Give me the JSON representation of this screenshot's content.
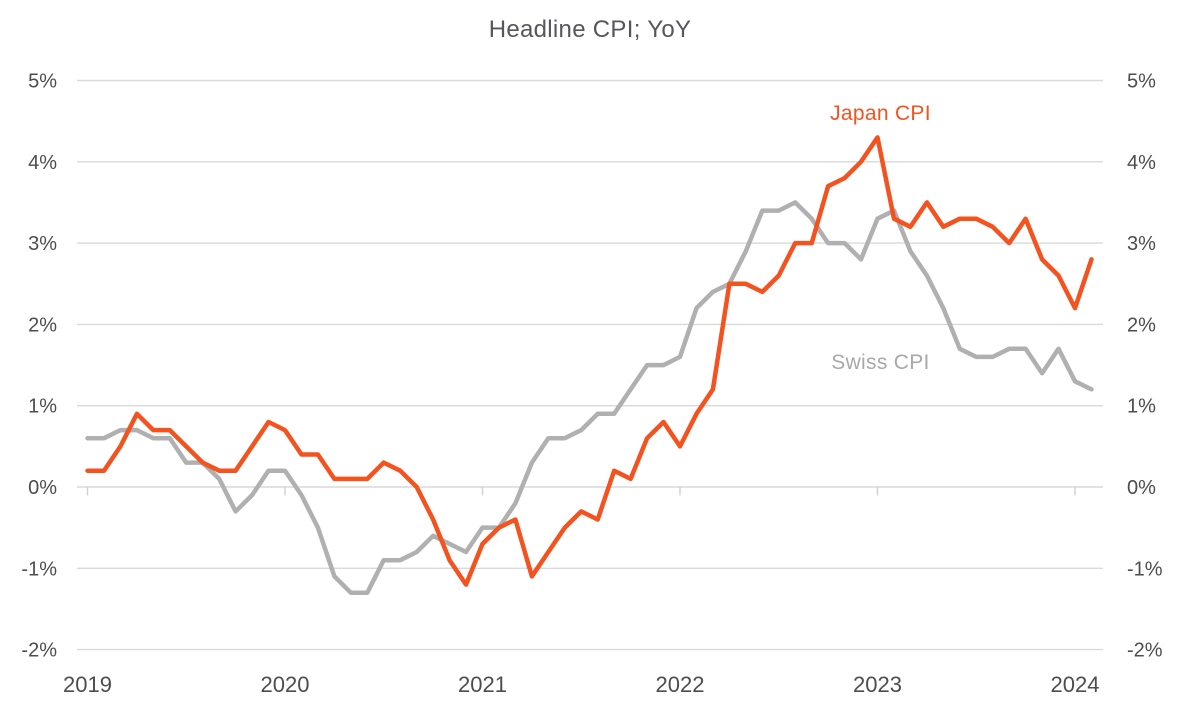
{
  "page": {
    "background": "#ffffff"
  },
  "chart_data": {
    "type": "line",
    "title": "Headline CPI; YoY",
    "x_unit": "month",
    "frequency": "monthly",
    "x_start": "2019-01",
    "x_end": "2024-02",
    "x_tick_labels": [
      "2019",
      "2020",
      "2021",
      "2022",
      "2023",
      "2024"
    ],
    "y_axis": {
      "min": -2,
      "max": 5,
      "tick_step": 1,
      "tick_labels": [
        "5%",
        "4%",
        "3%",
        "2%",
        "1%",
        "0%",
        "-1%",
        "-2%"
      ],
      "label_sides": [
        "left",
        "right"
      ],
      "grid": true,
      "year_ticks_on_zero_line": true
    },
    "series": [
      {
        "name": "Swiss CPI",
        "color": "#b0b0b0",
        "values": [
          0.6,
          0.6,
          0.7,
          0.7,
          0.6,
          0.6,
          0.3,
          0.3,
          0.1,
          -0.3,
          -0.1,
          0.2,
          0.2,
          -0.1,
          -0.5,
          -1.1,
          -1.3,
          -1.3,
          -0.9,
          -0.9,
          -0.8,
          -0.6,
          -0.7,
          -0.8,
          -0.5,
          -0.5,
          -0.2,
          0.3,
          0.6,
          0.6,
          0.7,
          0.9,
          0.9,
          1.2,
          1.5,
          1.5,
          1.6,
          2.2,
          2.4,
          2.5,
          2.9,
          3.4,
          3.4,
          3.5,
          3.3,
          3.0,
          3.0,
          2.8,
          3.3,
          3.4,
          2.9,
          2.6,
          2.2,
          1.7,
          1.6,
          1.6,
          1.7,
          1.7,
          1.4,
          1.7,
          1.3,
          1.2
        ]
      },
      {
        "name": "Japan CPI",
        "color": "#f4521e",
        "values": [
          0.2,
          0.2,
          0.5,
          0.9,
          0.7,
          0.7,
          0.5,
          0.3,
          0.2,
          0.2,
          0.5,
          0.8,
          0.7,
          0.4,
          0.4,
          0.1,
          0.1,
          0.1,
          0.3,
          0.2,
          0.0,
          -0.4,
          -0.9,
          -1.2,
          -0.7,
          -0.5,
          -0.4,
          -1.1,
          -0.8,
          -0.5,
          -0.3,
          -0.4,
          0.2,
          0.1,
          0.6,
          0.8,
          0.5,
          0.9,
          1.2,
          2.5,
          2.5,
          2.4,
          2.6,
          3.0,
          3.0,
          3.7,
          3.8,
          4.0,
          4.3,
          3.3,
          3.2,
          3.5,
          3.2,
          3.3,
          3.3,
          3.2,
          3.0,
          3.3,
          2.8,
          2.6,
          2.2,
          2.8
        ]
      }
    ],
    "annotations": [
      {
        "text": "Japan CPI",
        "color": "#f4521e",
        "anchor_month": "2023-01",
        "anchor_value": 4.59
      },
      {
        "text": "Swiss CPI",
        "color": "#a8a8a8",
        "anchor_month": "2023-01",
        "anchor_value": 1.53
      }
    ],
    "styles": {
      "grid_color": "#d9d9d9",
      "year_tick_color": "#d2d2d2",
      "axis_text_color": "#4d4d4d",
      "title_color": "#56575b",
      "line_width": 4.5
    },
    "legend_position": "inline-labels"
  }
}
